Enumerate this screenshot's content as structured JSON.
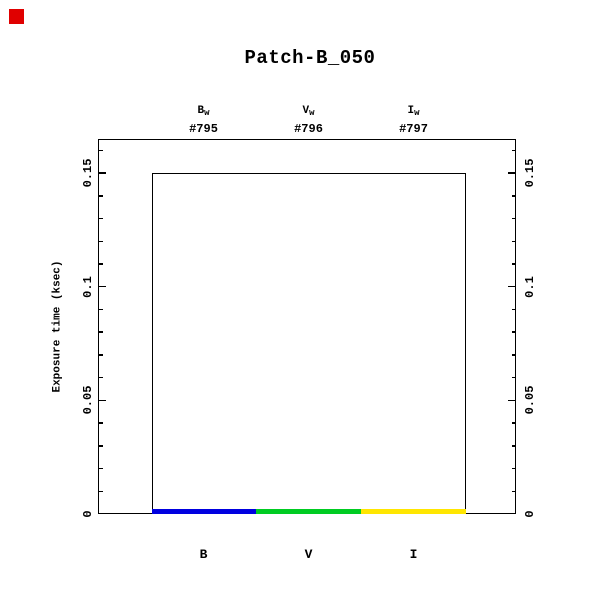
{
  "corner_marker": {
    "color": "#e00000"
  },
  "chart_data": {
    "type": "bar",
    "title": "Patch-B_050",
    "ylabel": "Exposure time (ksec)",
    "xlabel": "",
    "ylim": [
      0,
      0.165
    ],
    "yticks": [
      0,
      0.05,
      0.1,
      0.15
    ],
    "ytick_labels": [
      "0",
      "0.05",
      "0.1",
      "0.15"
    ],
    "y_minor_tick_step": 0.01,
    "grid": false,
    "legend": null,
    "right_axis_mirror": true,
    "tick_labels_rotated": true,
    "outline_color": "#000000",
    "categories": [
      "B",
      "V",
      "I"
    ],
    "columns": [
      {
        "category": "B",
        "filter_main": "B",
        "filter_sub": "w",
        "exposure_id": "#795",
        "planned_ksec": 0.15,
        "observed_ksec": 0.002,
        "bar_color": "#0000e0"
      },
      {
        "category": "V",
        "filter_main": "V",
        "filter_sub": "w",
        "exposure_id": "#796",
        "planned_ksec": 0.15,
        "observed_ksec": 0.002,
        "bar_color": "#00cc22"
      },
      {
        "category": "I",
        "filter_main": "I",
        "filter_sub": "w",
        "exposure_id": "#797",
        "planned_ksec": 0.15,
        "observed_ksec": 0.002,
        "bar_color": "#ffe600"
      }
    ]
  }
}
